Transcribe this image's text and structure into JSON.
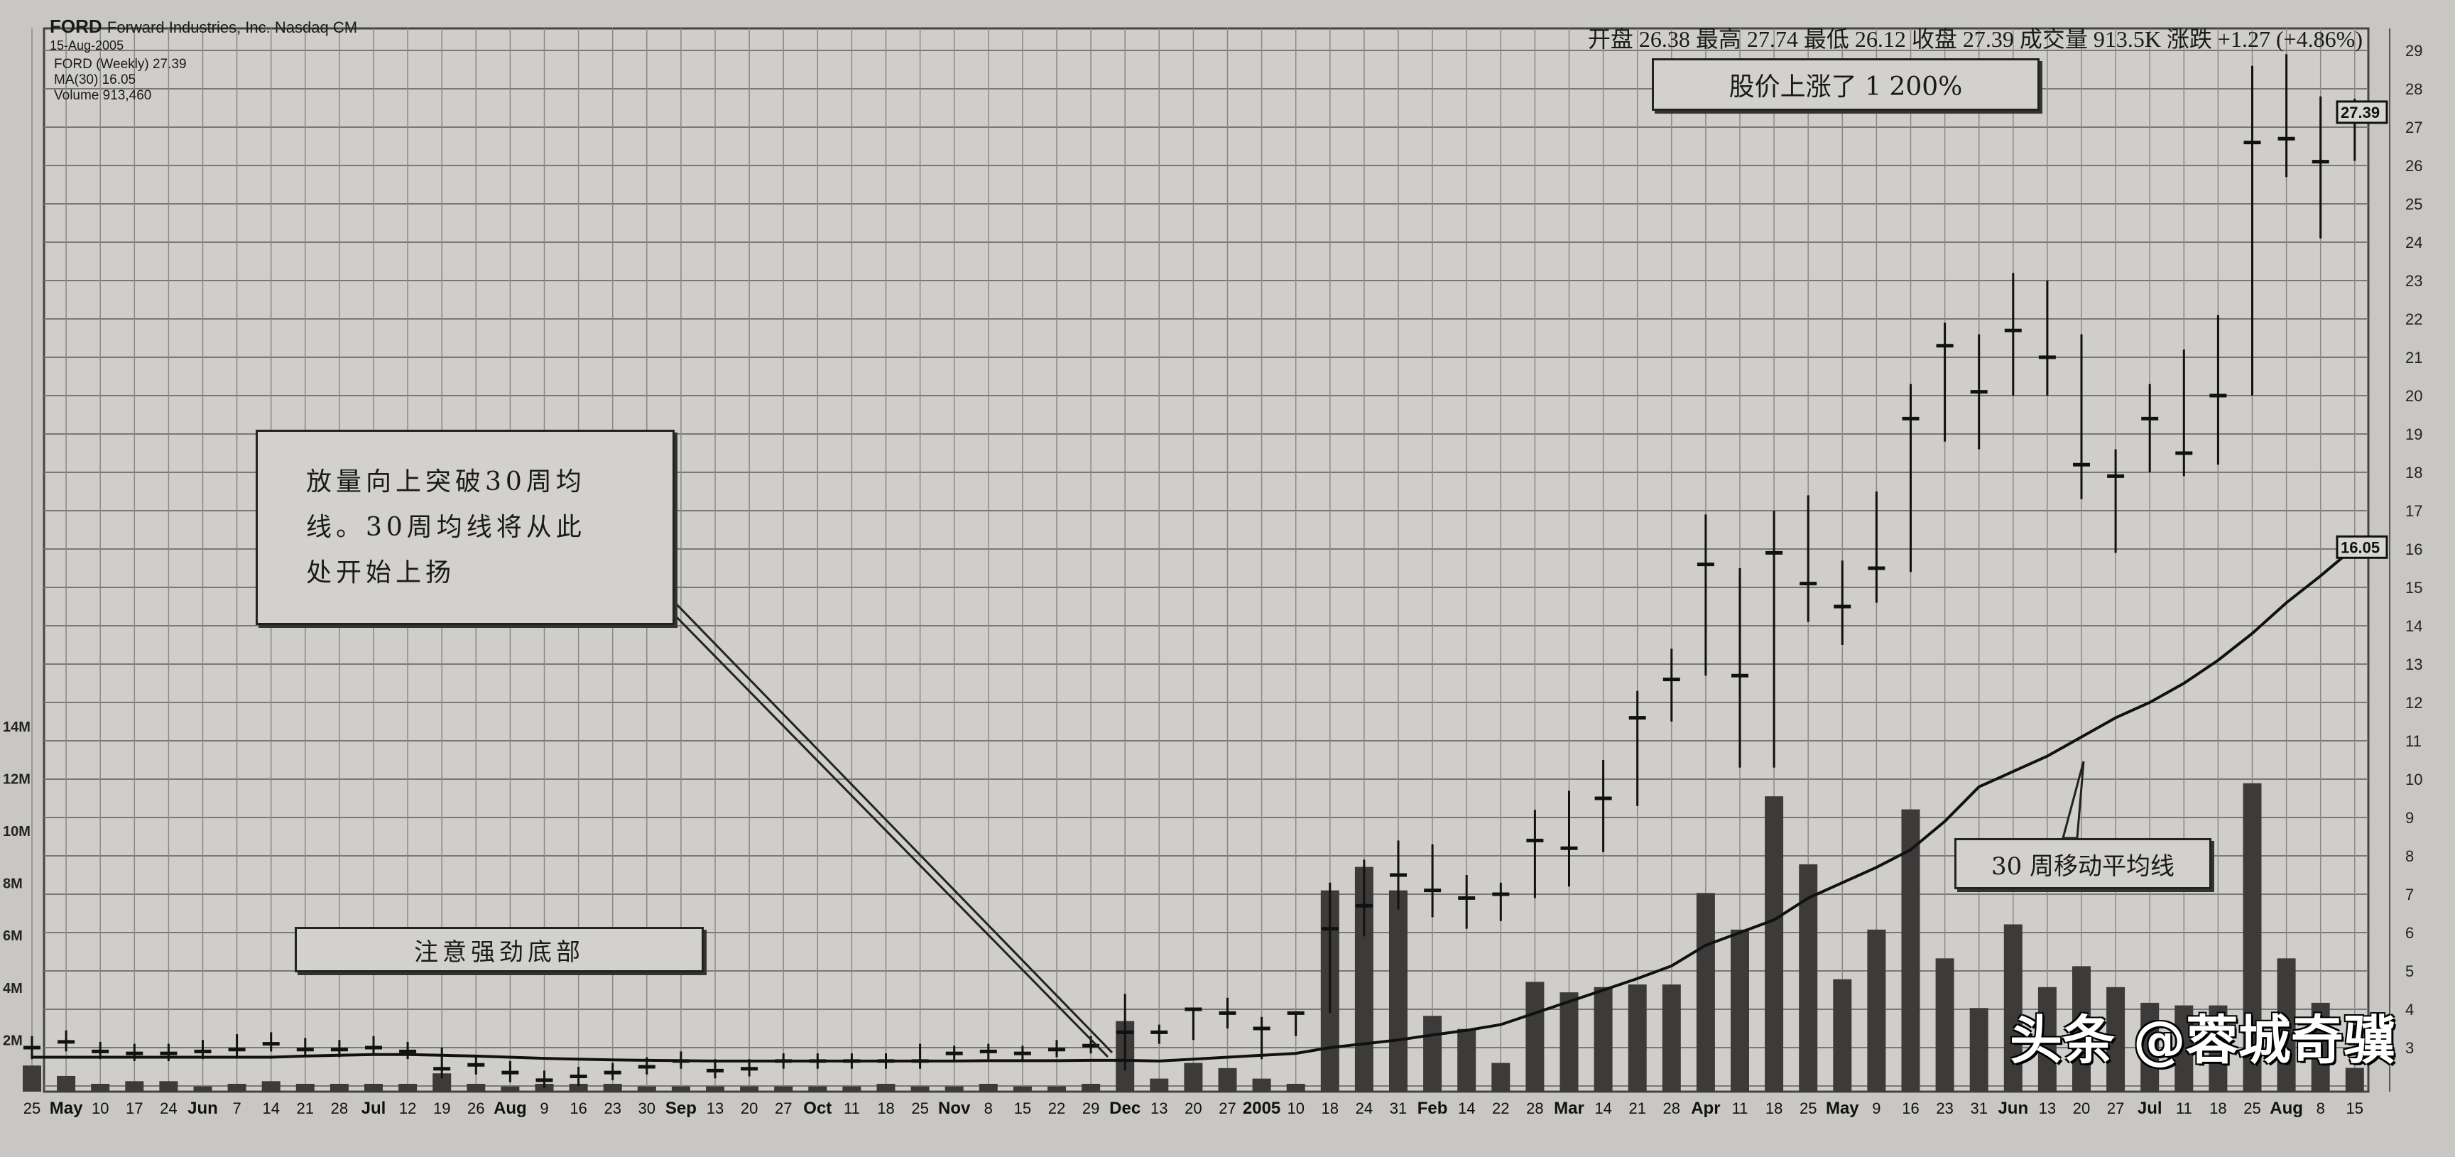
{
  "header": {
    "symbol": "FORD",
    "company": "Forward Industries, Inc. Nasdaq CM",
    "date": "15-Aug-2005",
    "legend_price": "FORD (Weekly) 27.39",
    "legend_ma": "MA(30) 16.05",
    "legend_volume": "Volume 913,460"
  },
  "stats": "开盘 26.38  最高 27.74  最低 26.12  收盘 27.39  成交量 913.5K  涨跌 +1.27 (+4.86%)",
  "annotations": {
    "breakout": [
      "放量向上突破30周均",
      "线。30周均线将从此",
      "处开始上扬"
    ],
    "bottom": "注意强劲底部",
    "rise": "股价上涨了 1 200%",
    "ma_label": "30 周移动平均线"
  },
  "watermark": "头条 @蓉城奇骥",
  "chart_data": {
    "type": "ohlc-bar with volume",
    "price_axis": {
      "range": [
        2,
        29
      ],
      "ticks": [
        3,
        4,
        5,
        6,
        7,
        8,
        9,
        10,
        11,
        12,
        13,
        14,
        15,
        16,
        17,
        18,
        19,
        20,
        21,
        22,
        23,
        24,
        25,
        26,
        27,
        28,
        29
      ],
      "position": "right"
    },
    "volume_axis": {
      "ticks": [
        "2M",
        "4M",
        "6M",
        "8M",
        "10M",
        "12M",
        "14M"
      ],
      "values": [
        2,
        4,
        6,
        8,
        10,
        12,
        14
      ],
      "position": "left"
    },
    "price_badges": [
      "27.39",
      "16.05"
    ],
    "grid": true,
    "x_labels": [
      "25",
      "May",
      "10",
      "17",
      "24",
      "Jun",
      "7",
      "14",
      "21",
      "28",
      "Jul",
      "12",
      "19",
      "26",
      "Aug",
      "9",
      "16",
      "23",
      "30",
      "Sep",
      "13",
      "20",
      "27",
      "Oct",
      "11",
      "18",
      "25",
      "Nov",
      "8",
      "15",
      "22",
      "29",
      "Dec",
      "13",
      "20",
      "27",
      "2005",
      "10",
      "18",
      "24",
      "31",
      "Feb",
      "14",
      "22",
      "28",
      "Mar",
      "14",
      "21",
      "28",
      "Apr",
      "11",
      "18",
      "25",
      "May",
      "9",
      "16",
      "23",
      "31",
      "Jun",
      "13",
      "20",
      "27",
      "Jul",
      "11",
      "18",
      "25",
      "Aug",
      "8",
      "15"
    ],
    "bold_labels": [
      "May",
      "Jun",
      "Jul",
      "Aug",
      "Sep",
      "Oct",
      "Nov",
      "Dec",
      "2005",
      "Feb",
      "Mar",
      "Apr"
    ],
    "close": [
      3.0,
      3.15,
      2.9,
      2.85,
      2.85,
      2.9,
      2.95,
      3.1,
      2.95,
      2.95,
      3.0,
      2.9,
      2.45,
      2.55,
      2.35,
      2.15,
      2.25,
      2.35,
      2.5,
      2.65,
      2.4,
      2.45,
      2.65,
      2.65,
      2.65,
      2.65,
      2.65,
      2.85,
      2.9,
      2.85,
      2.95,
      3.05,
      3.4,
      3.4,
      4.0,
      3.9,
      3.5,
      3.9,
      6.1,
      6.7,
      7.5,
      7.1,
      6.9,
      7.0,
      8.4,
      8.2,
      9.5,
      11.6,
      12.6,
      15.6,
      12.7,
      15.9,
      15.1,
      14.5,
      15.5,
      19.4,
      21.3,
      20.1,
      21.7,
      21.0,
      18.2,
      17.9,
      19.4,
      18.5,
      20.0,
      26.6,
      26.7,
      26.1,
      27.39
    ],
    "high": [
      3.3,
      3.45,
      3.15,
      3.1,
      3.1,
      3.2,
      3.35,
      3.4,
      3.25,
      3.2,
      3.3,
      3.15,
      3.0,
      2.8,
      2.65,
      2.4,
      2.5,
      2.6,
      2.75,
      2.9,
      2.7,
      2.7,
      2.85,
      2.85,
      2.85,
      2.85,
      3.1,
      3.05,
      3.1,
      3.05,
      3.2,
      3.3,
      4.4,
      3.6,
      4.0,
      4.3,
      3.8,
      3.9,
      7.3,
      7.9,
      8.4,
      8.3,
      7.5,
      7.3,
      9.2,
      9.7,
      10.5,
      12.3,
      13.4,
      16.9,
      15.5,
      17.0,
      17.4,
      15.7,
      17.5,
      20.3,
      21.9,
      21.6,
      23.2,
      23.0,
      21.6,
      18.6,
      20.3,
      21.2,
      22.1,
      28.6,
      28.9,
      27.8,
      27.74
    ],
    "low": [
      2.7,
      2.9,
      2.7,
      2.65,
      2.65,
      2.7,
      2.75,
      2.9,
      2.75,
      2.75,
      2.8,
      2.7,
      2.2,
      2.3,
      2.1,
      1.95,
      2.0,
      2.15,
      2.3,
      2.45,
      2.2,
      2.25,
      2.45,
      2.45,
      2.45,
      2.45,
      2.45,
      2.65,
      2.7,
      2.65,
      2.75,
      2.85,
      2.4,
      3.1,
      3.2,
      3.5,
      2.7,
      3.3,
      3.9,
      5.9,
      6.6,
      6.4,
      6.1,
      6.3,
      6.9,
      7.2,
      8.1,
      9.3,
      11.5,
      12.7,
      10.3,
      10.3,
      14.1,
      13.5,
      14.6,
      15.4,
      18.8,
      18.6,
      20.0,
      20.0,
      17.3,
      15.9,
      18.0,
      17.9,
      18.2,
      20.0,
      25.7,
      24.1,
      26.12
    ],
    "volume_millions": [
      1.0,
      0.6,
      0.3,
      0.4,
      0.4,
      0.2,
      0.3,
      0.4,
      0.3,
      0.3,
      0.3,
      0.3,
      0.7,
      0.3,
      0.2,
      0.3,
      0.3,
      0.3,
      0.2,
      0.2,
      0.2,
      0.2,
      0.2,
      0.2,
      0.2,
      0.3,
      0.2,
      0.2,
      0.3,
      0.2,
      0.2,
      0.3,
      2.7,
      0.5,
      1.1,
      0.9,
      0.5,
      0.3,
      7.7,
      8.6,
      7.7,
      2.9,
      2.4,
      1.1,
      4.2,
      3.8,
      4.0,
      4.1,
      4.1,
      7.6,
      6.2,
      11.3,
      8.7,
      4.3,
      6.2,
      10.8,
      5.1,
      3.2,
      6.4,
      4.0,
      4.8,
      4.0,
      3.4,
      3.3,
      3.3,
      11.8,
      5.1,
      3.4,
      0.91
    ],
    "ma30": [
      2.75,
      2.75,
      2.75,
      2.75,
      2.75,
      2.75,
      2.75,
      2.75,
      2.78,
      2.8,
      2.82,
      2.82,
      2.8,
      2.78,
      2.75,
      2.72,
      2.7,
      2.68,
      2.67,
      2.66,
      2.65,
      2.65,
      2.65,
      2.65,
      2.65,
      2.65,
      2.65,
      2.65,
      2.66,
      2.66,
      2.66,
      2.67,
      2.67,
      2.65,
      2.7,
      2.75,
      2.8,
      2.85,
      3.0,
      3.1,
      3.2,
      3.33,
      3.45,
      3.6,
      3.9,
      4.2,
      4.5,
      4.8,
      5.13,
      5.67,
      6.0,
      6.33,
      6.9,
      7.3,
      7.7,
      8.16,
      8.9,
      9.8,
      10.2,
      10.6,
      11.1,
      11.6,
      12.0,
      12.5,
      13.1,
      13.8,
      14.6,
      15.3,
      16.05
    ]
  }
}
